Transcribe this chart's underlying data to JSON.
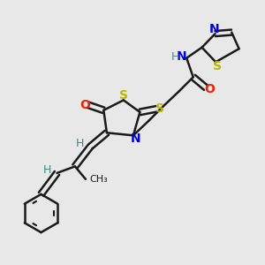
{
  "background_color": "#e8e8e8",
  "bond_color": "#1a1a1a",
  "bond_width": 1.8,
  "fig_width": 3.0,
  "fig_height": 3.0,
  "dpi": 100,
  "colors": {
    "S": "#b8b800",
    "N": "#0000dd",
    "O": "#ee2200",
    "H": "#2a9090",
    "C": "#1a1a1a"
  }
}
